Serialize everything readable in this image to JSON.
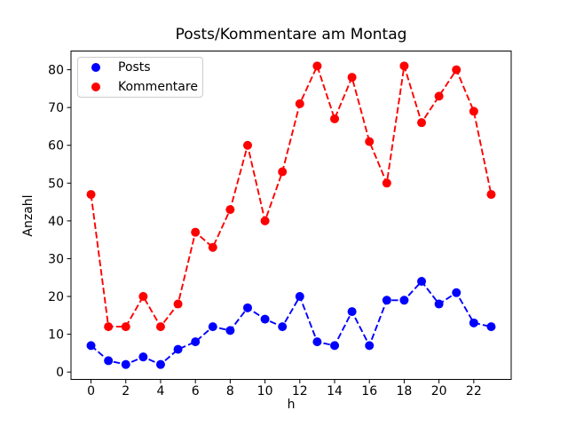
{
  "chart_data": {
    "type": "line",
    "title": "Posts/Kommentare am Montag",
    "xlabel": "h",
    "ylabel": "Anzahl",
    "x": [
      0,
      1,
      2,
      3,
      4,
      5,
      6,
      7,
      8,
      9,
      10,
      11,
      12,
      13,
      14,
      15,
      16,
      17,
      18,
      19,
      20,
      21,
      22,
      23
    ],
    "series": [
      {
        "name": "Posts",
        "color": "#0000ff",
        "marker": "circle",
        "linestyle": "dashed",
        "values": [
          7,
          3,
          2,
          4,
          2,
          6,
          8,
          12,
          11,
          17,
          14,
          12,
          20,
          8,
          7,
          16,
          7,
          19,
          19,
          24,
          18,
          21,
          13,
          12
        ]
      },
      {
        "name": "Kommentare",
        "color": "#ff0000",
        "marker": "circle",
        "linestyle": "dashed",
        "values": [
          47,
          12,
          12,
          20,
          12,
          18,
          37,
          33,
          43,
          60,
          40,
          53,
          71,
          81,
          67,
          78,
          61,
          50,
          81,
          66,
          73,
          80,
          69,
          47
        ]
      }
    ],
    "xticks": [
      0,
      2,
      4,
      6,
      8,
      10,
      12,
      14,
      16,
      18,
      20,
      22
    ],
    "yticks": [
      0,
      10,
      20,
      30,
      40,
      50,
      60,
      70,
      80
    ],
    "xlim": [
      -1.15,
      24.15
    ],
    "ylim": [
      -1.95,
      84.95
    ],
    "grid": false,
    "legend": {
      "position": "upper left",
      "entries": [
        "Posts",
        "Kommentare"
      ]
    },
    "axis_color": "#000000",
    "background": "#ffffff"
  }
}
